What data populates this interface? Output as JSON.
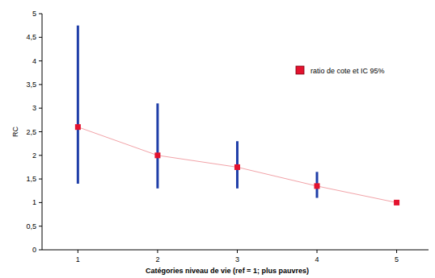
{
  "chart_data": {
    "type": "line",
    "x_label": "Catégories niveau de vie (ref = 1; plus pauvres)",
    "y_label": "RC",
    "x": [
      1,
      2,
      3,
      4,
      5
    ],
    "xlim": [
      0.55,
      5.4
    ],
    "xticks": [
      1,
      2,
      3,
      4,
      5
    ],
    "ylim": [
      0,
      5
    ],
    "yticks": [
      0,
      {
        "value": 0.5,
        "label": "0,5"
      },
      1,
      {
        "value": 1.5,
        "label": "1,5"
      },
      2,
      {
        "value": 2.5,
        "label": "2,5"
      },
      3,
      {
        "value": 3.5,
        "label": "3,5"
      },
      4,
      {
        "value": 4.5,
        "label": "4,5"
      },
      5
    ],
    "grid": false,
    "legend": "top-right",
    "series": [
      {
        "name": "ratio de cote et IC 95%",
        "color": "#e3122e",
        "marker": "square",
        "line_style": "solid",
        "values": [
          2.6,
          2.0,
          1.75,
          1.35,
          1.0
        ],
        "ci_low": [
          1.4,
          1.3,
          1.3,
          1.1,
          null
        ],
        "ci_high": [
          4.75,
          3.1,
          2.3,
          1.65,
          null
        ]
      }
    ]
  }
}
